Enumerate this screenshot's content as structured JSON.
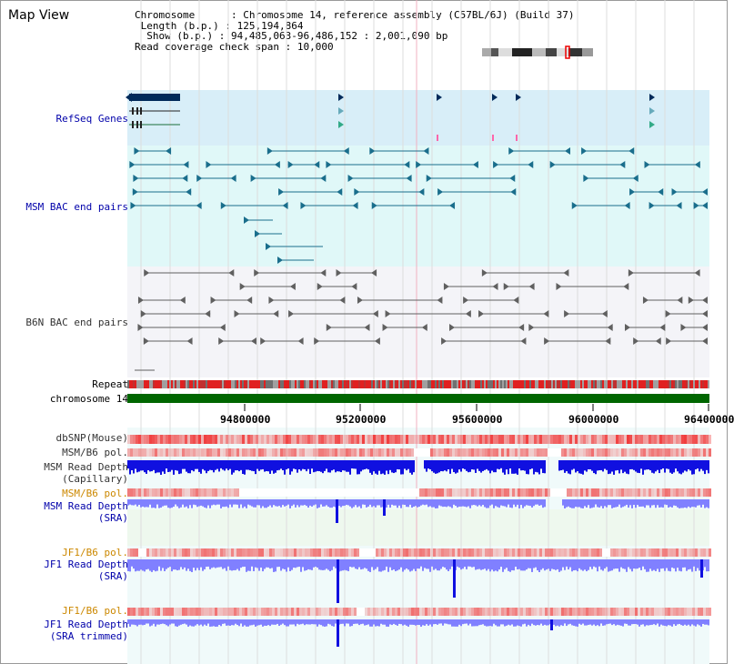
{
  "window": {
    "title": "Map View"
  },
  "info": {
    "chromosome_key": "Chromosome",
    "chromosome_val": "Chromosome 14, reference assembly (C57BL/6J) (Build 37)",
    "length_key": "Length (b.p.)",
    "length_val": "125,194,864",
    "show_key": "Show (b.p.)",
    "show_val": "94,485,063-96,486,152 : 2,001,090 bp",
    "span_key": "Read coverage check span",
    "span_val": "10,000"
  },
  "labels": {
    "refseq": "RefSeq Genes",
    "msm_bac": "MSM BAC end pairs",
    "b6n_bac": "B6N BAC end pairs",
    "repeat": "Repeat",
    "chromosome": "chromosome 14",
    "dbsnp": "dbSNP(Mouse)",
    "msm_b6_pol_1": "MSM/B6 pol.",
    "msm_read_depth_cap": "MSM Read Depth\n(Capillary)",
    "msm_b6_pol_2": "MSM/B6 pol.",
    "msm_read_depth_sra": "MSM Read Depth\n(SRA)",
    "jf1_b6_pol_1": "JF1/B6 pol.",
    "jf1_read_depth_sra": "JF1 Read Depth\n(SRA)",
    "jf1_b6_pol_2": "JF1/B6 pol.",
    "jf1_read_depth_trim": "JF1 Read Depth\n(SRA trimmed)"
  },
  "axis": {
    "ticks": [
      "94800000",
      "95200000",
      "95600000",
      "96000000",
      "96400000"
    ]
  },
  "colors": {
    "refseq_bg": "#d8eef8",
    "msm_bg": "#e0f8f8",
    "b6n_bg": "#f4f4f8",
    "gene_dark": "#002a5a",
    "gene_mid": "#207090",
    "msm_pair": "#1a6e8c",
    "b6n_pair": "#606060",
    "chrom_green": "#006600",
    "repeat_red": "#e02020",
    "depth_blue": "#1010e0",
    "depth_light": "#8080ff"
  },
  "icons": {
    "ideogram": "chromosome-ideogram"
  }
}
